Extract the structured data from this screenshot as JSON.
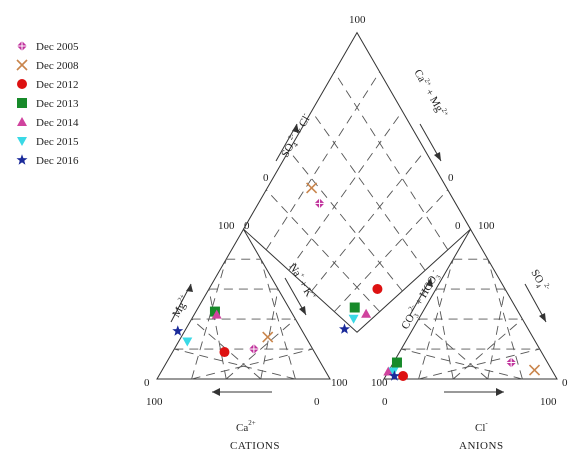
{
  "chart_data": {
    "type": "scatter",
    "subtype": "piper-diagram",
    "grid": true,
    "legend_position": "top-left",
    "series": [
      {
        "name": "Dec 2005",
        "marker": "plus-diamond",
        "color": "#c0329c",
        "cation": {
          "Ca": 34,
          "Mg": 20
        },
        "anion": {
          "Cl": 68,
          "SO4": 11
        }
      },
      {
        "name": "Dec 2008",
        "marker": "x",
        "color": "#c9854c",
        "cation": {
          "Ca": 22,
          "Mg": 28
        },
        "anion": {
          "Cl": 84,
          "SO4": 6
        }
      },
      {
        "name": "Dec 2012",
        "marker": "circle",
        "color": "#dd1111",
        "cation": {
          "Ca": 52,
          "Mg": 18
        },
        "anion": {
          "Cl": 10,
          "SO4": 2
        }
      },
      {
        "name": "Dec 2013",
        "marker": "square",
        "color": "#178a2a",
        "cation": {
          "Ca": 44,
          "Mg": 45
        },
        "anion": {
          "Cl": 2,
          "SO4": 11
        }
      },
      {
        "name": "Dec 2014",
        "marker": "triangle-up",
        "color": "#d0439e",
        "cation": {
          "Ca": 44,
          "Mg": 43
        },
        "anion": {
          "Cl": 0,
          "SO4": 5
        }
      },
      {
        "name": "Dec 2015",
        "marker": "triangle-down",
        "color": "#3ad9e6",
        "cation": {
          "Ca": 70,
          "Mg": 25
        },
        "anion": {
          "Cl": 3,
          "SO4": 5
        }
      },
      {
        "name": "Dec 2016",
        "marker": "star",
        "color": "#1a2a9a",
        "cation": {
          "Ca": 72,
          "Mg": 32
        },
        "anion": {
          "Cl": 5,
          "SO4": 2
        }
      }
    ],
    "cations": {
      "title": "CATIONS",
      "bottom_label": "Ca",
      "bottom_label_sup": "2+",
      "left_label": "Mg",
      "left_label_sup": "2+",
      "right_label": "Na",
      "right_label_sup": "+",
      "right_label_2": "K",
      "right_label_2_sup": "+",
      "tick_left_bottom": "0",
      "tick_left_top": "100",
      "tick_apex_left": "100",
      "tick_apex_right": "0",
      "tick_right_end": "100",
      "tick_below_left": "100",
      "tick_below_right": "0"
    },
    "anions": {
      "title": "ANIONS",
      "bottom_label": "Cl",
      "bottom_label_sup": "-",
      "left_label": "CO",
      "left_label_sub": "3",
      "left_label_sup": "2-",
      "left_label_mid": " + HCO",
      "left_label_sub_2": "3",
      "left_label_sup_2": "-",
      "right_label": "SO",
      "right_label_sub": "4",
      "right_label_sup": "2-",
      "tick_apex_left": "0",
      "tick_apex_right": "100",
      "tick_left_end": "100",
      "tick_right_end": "0",
      "tick_below_left": "0",
      "tick_below_right": "100"
    },
    "diamond": {
      "upper_left_label": "SO",
      "upper_left_sub": "4",
      "upper_left_sup": "2-",
      "upper_left_mid": " + Cl",
      "upper_left_sup_2": "-",
      "upper_right_label": "Ca",
      "upper_right_sup": "2+",
      "upper_right_mid": " + Mg",
      "upper_right_sup_2": "2+",
      "tick_top": "100",
      "tick_left": "0",
      "tick_right": "0"
    }
  }
}
